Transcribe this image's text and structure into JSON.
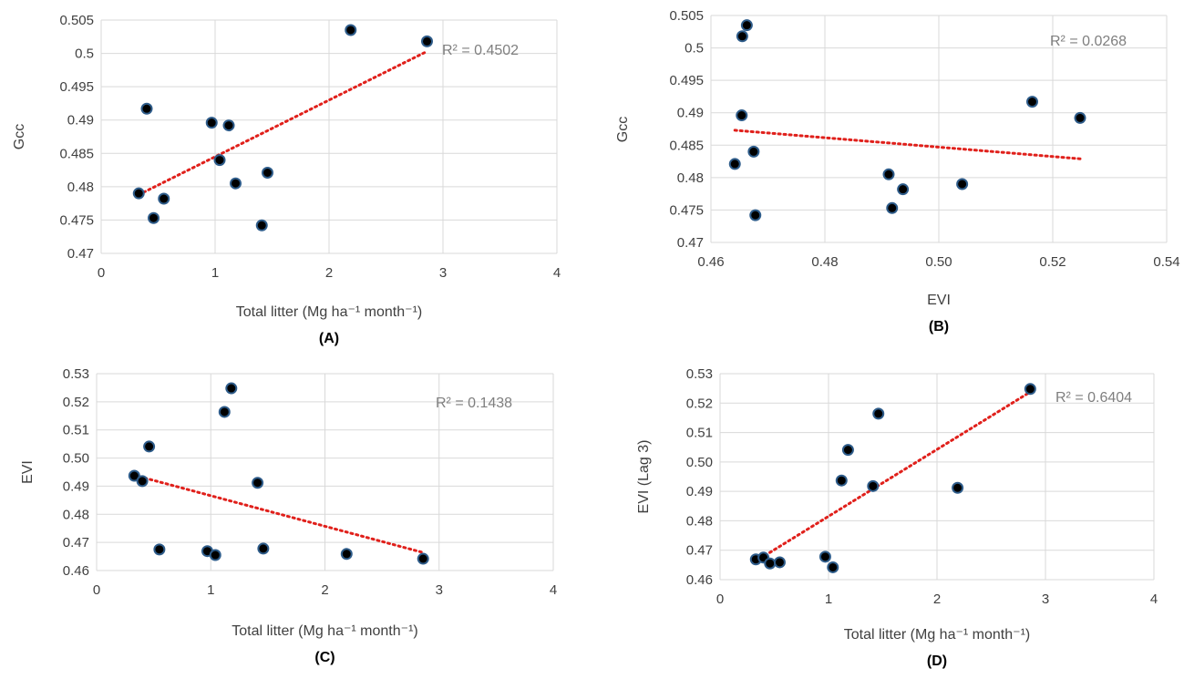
{
  "chart_data": [
    {
      "panel": "(A)",
      "type": "scatter",
      "xlabel": "Total litter (Mg ha⁻¹ month⁻¹)",
      "ylabel": "Gcc",
      "xlim": [
        0,
        4
      ],
      "ylim": [
        0.47,
        0.505
      ],
      "xticks": [
        "0",
        "1",
        "2",
        "3",
        "4"
      ],
      "yticks": [
        "0.47",
        "0.475",
        "0.48",
        "0.485",
        "0.49",
        "0.495",
        "0.5",
        "0.505"
      ],
      "grid": true,
      "annotation": "R² = 0.4502",
      "x": [
        0.33,
        0.4,
        0.46,
        0.55,
        0.97,
        1.04,
        1.12,
        1.18,
        1.41,
        1.46,
        2.19,
        2.86
      ],
      "y": [
        0.479,
        0.4917,
        0.4753,
        0.4782,
        0.4896,
        0.484,
        0.4892,
        0.4805,
        0.4742,
        0.4821,
        0.5035,
        0.5018
      ],
      "trendline": [
        [
          0.33,
          0.4788
        ],
        [
          2.86,
          0.5003
        ]
      ]
    },
    {
      "panel": "(B)",
      "type": "scatter",
      "xlabel": "EVI",
      "ylabel": "Gcc",
      "xlim": [
        0.46,
        0.54
      ],
      "ylim": [
        0.47,
        0.505
      ],
      "xticks": [
        "0.46",
        "0.48",
        "0.50",
        "0.52",
        "0.54"
      ],
      "yticks": [
        "0.47",
        "0.475",
        "0.48",
        "0.485",
        "0.49",
        "0.495",
        "0.5",
        "0.505"
      ],
      "grid": true,
      "annotation": "R² = 0.0268",
      "x": [
        0.4642,
        0.4654,
        0.4655,
        0.4663,
        0.4675,
        0.4678,
        0.4912,
        0.4918,
        0.4937,
        0.5041,
        0.5164,
        0.5248
      ],
      "y": [
        0.4821,
        0.4896,
        0.5018,
        0.5035,
        0.484,
        0.4742,
        0.4805,
        0.4753,
        0.4782,
        0.479,
        0.4917,
        0.4892
      ],
      "trendline": [
        [
          0.4642,
          0.4873
        ],
        [
          0.5248,
          0.4829
        ]
      ]
    },
    {
      "panel": "(C)",
      "type": "scatter",
      "xlabel": "Total litter (Mg ha⁻¹ month⁻¹)",
      "ylabel": "EVI",
      "xlim": [
        0,
        4
      ],
      "ylim": [
        0.46,
        0.53
      ],
      "xticks": [
        "0",
        "1",
        "2",
        "3",
        "4"
      ],
      "yticks": [
        "0.46",
        "0.47",
        "0.48",
        "0.49",
        "0.50",
        "0.51",
        "0.52",
        "0.53"
      ],
      "grid": true,
      "annotation": "R² = 0.1438",
      "x": [
        0.33,
        0.4,
        0.46,
        0.55,
        0.97,
        1.04,
        1.12,
        1.18,
        1.41,
        1.46,
        2.19,
        2.86
      ],
      "y": [
        0.4937,
        0.4918,
        0.5041,
        0.4675,
        0.4669,
        0.4655,
        0.5164,
        0.5248,
        0.4912,
        0.4678,
        0.4659,
        0.4642
      ],
      "trendline": [
        [
          0.33,
          0.4939
        ],
        [
          2.86,
          0.4664
        ]
      ]
    },
    {
      "panel": "(D)",
      "type": "scatter",
      "xlabel": "Total litter (Mg ha⁻¹ month⁻¹)",
      "ylabel": "EVI (Lag 3)",
      "xlim": [
        0,
        4
      ],
      "ylim": [
        0.46,
        0.53
      ],
      "xticks": [
        "0",
        "1",
        "2",
        "3",
        "4"
      ],
      "yticks": [
        "0.46",
        "0.47",
        "0.48",
        "0.49",
        "0.50",
        "0.51",
        "0.52",
        "0.53"
      ],
      "grid": true,
      "annotation": "R² = 0.6404",
      "x": [
        0.33,
        0.4,
        0.46,
        0.55,
        0.97,
        1.04,
        1.12,
        1.18,
        1.41,
        1.46,
        2.19,
        2.86
      ],
      "y": [
        0.4669,
        0.4675,
        0.4655,
        0.4659,
        0.4678,
        0.4642,
        0.4937,
        0.5041,
        0.4918,
        0.5164,
        0.4912,
        0.5248
      ],
      "trendline": [
        [
          0.33,
          0.4663
        ],
        [
          2.86,
          0.5238
        ]
      ]
    }
  ]
}
